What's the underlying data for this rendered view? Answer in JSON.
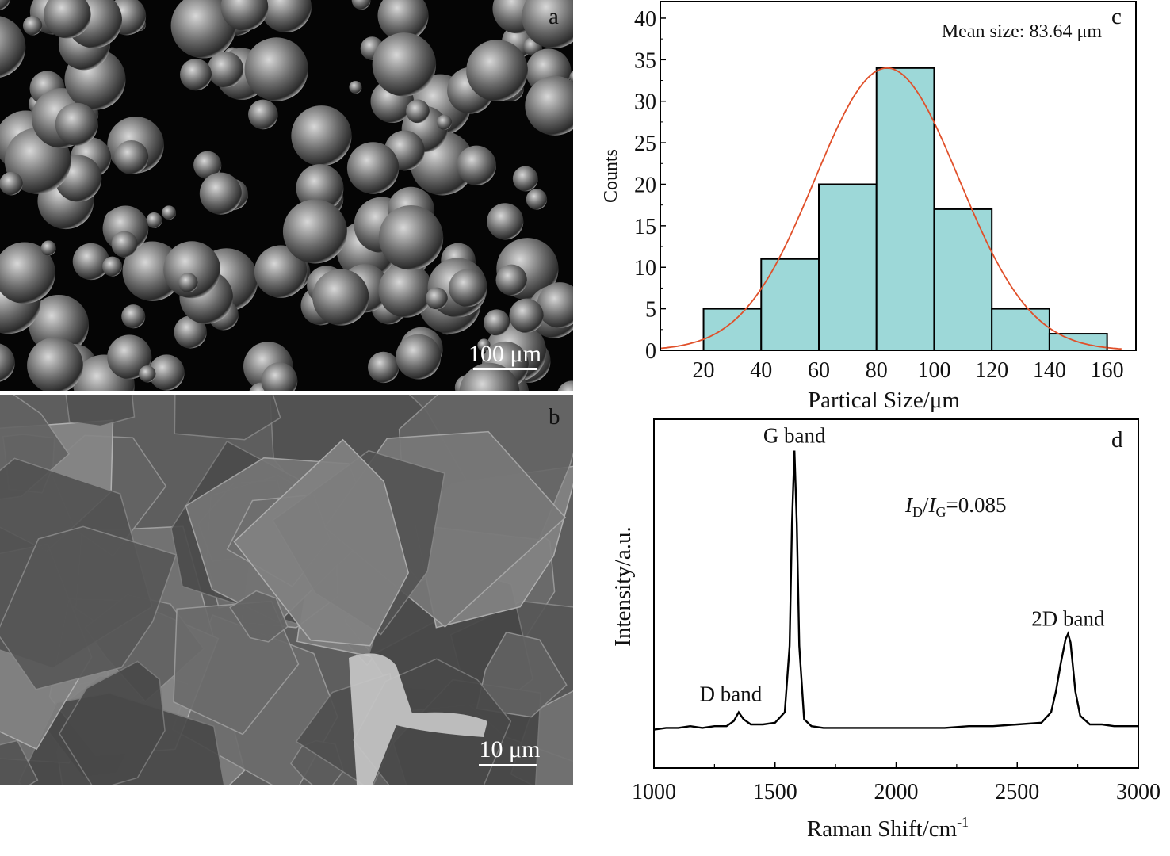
{
  "panels": {
    "a": {
      "label": "a",
      "scale_bar": "100 μm"
    },
    "b": {
      "label": "b",
      "scale_bar": "10 μm"
    }
  },
  "chart_data": [
    {
      "panel_label": "c",
      "type": "bar",
      "xlabel": "Partical Size/μm",
      "ylabel": "Counts",
      "annotation": "Mean size: 83.64 μm",
      "bins": [
        [
          20,
          40
        ],
        [
          40,
          60
        ],
        [
          60,
          80
        ],
        [
          80,
          100
        ],
        [
          100,
          120
        ],
        [
          120,
          140
        ],
        [
          140,
          160
        ]
      ],
      "values": [
        5,
        11,
        20,
        34,
        17,
        5,
        2
      ],
      "xlim": [
        5,
        170
      ],
      "ylim": [
        0,
        42
      ],
      "xticks": [
        20,
        40,
        60,
        80,
        100,
        120,
        140,
        160
      ],
      "yticks": [
        0,
        5,
        10,
        15,
        20,
        25,
        30,
        35,
        40
      ],
      "fit": {
        "type": "gaussian",
        "mean": 83.64,
        "sigma": 25,
        "peak": 34,
        "range": [
          5,
          165
        ]
      },
      "colors": {
        "bar": "#9dd8d8",
        "fit": "#e0502a",
        "edge": "#000000"
      }
    },
    {
      "panel_label": "d",
      "type": "line",
      "xlabel": "Raman Shift/cm",
      "xlabel_sup": "-1",
      "ylabel": "Intensity/a.u.",
      "xlim": [
        1000,
        3000
      ],
      "ylim": [
        0,
        100
      ],
      "xticks": [
        1000,
        1500,
        2000,
        2500,
        3000
      ],
      "minor_xticks": [
        1250,
        1750,
        2250,
        2750
      ],
      "ratio_label": {
        "i1": "I",
        "sub1": "D",
        "slash": "/",
        "i2": "I",
        "sub2": "G",
        "value": "=0.085"
      },
      "peaks": [
        {
          "label": "D band",
          "x": 1350
        },
        {
          "label": "G band",
          "x": 1580
        },
        {
          "label": "2D band",
          "x": 2710
        }
      ],
      "x": [
        1000,
        1050,
        1100,
        1150,
        1200,
        1250,
        1300,
        1330,
        1350,
        1370,
        1400,
        1450,
        1500,
        1540,
        1560,
        1570,
        1580,
        1590,
        1600,
        1620,
        1650,
        1700,
        1800,
        1900,
        2000,
        2100,
        2200,
        2300,
        2400,
        2500,
        2600,
        2640,
        2660,
        2680,
        2700,
        2710,
        2720,
        2740,
        2760,
        2800,
        2850,
        2900,
        2950,
        3000
      ],
      "y": [
        11,
        11.5,
        11.5,
        12,
        11.5,
        12,
        12,
        13.5,
        16,
        14,
        12.5,
        12.5,
        13,
        16,
        35,
        70,
        91,
        70,
        35,
        14,
        12,
        11.5,
        11.5,
        11.5,
        11.5,
        11.5,
        11.5,
        12,
        12,
        12.5,
        13,
        16,
        22,
        30,
        37,
        38.5,
        36,
        22,
        15,
        12.5,
        12.5,
        12,
        12,
        12
      ],
      "colors": {
        "line": "#000000"
      }
    }
  ]
}
